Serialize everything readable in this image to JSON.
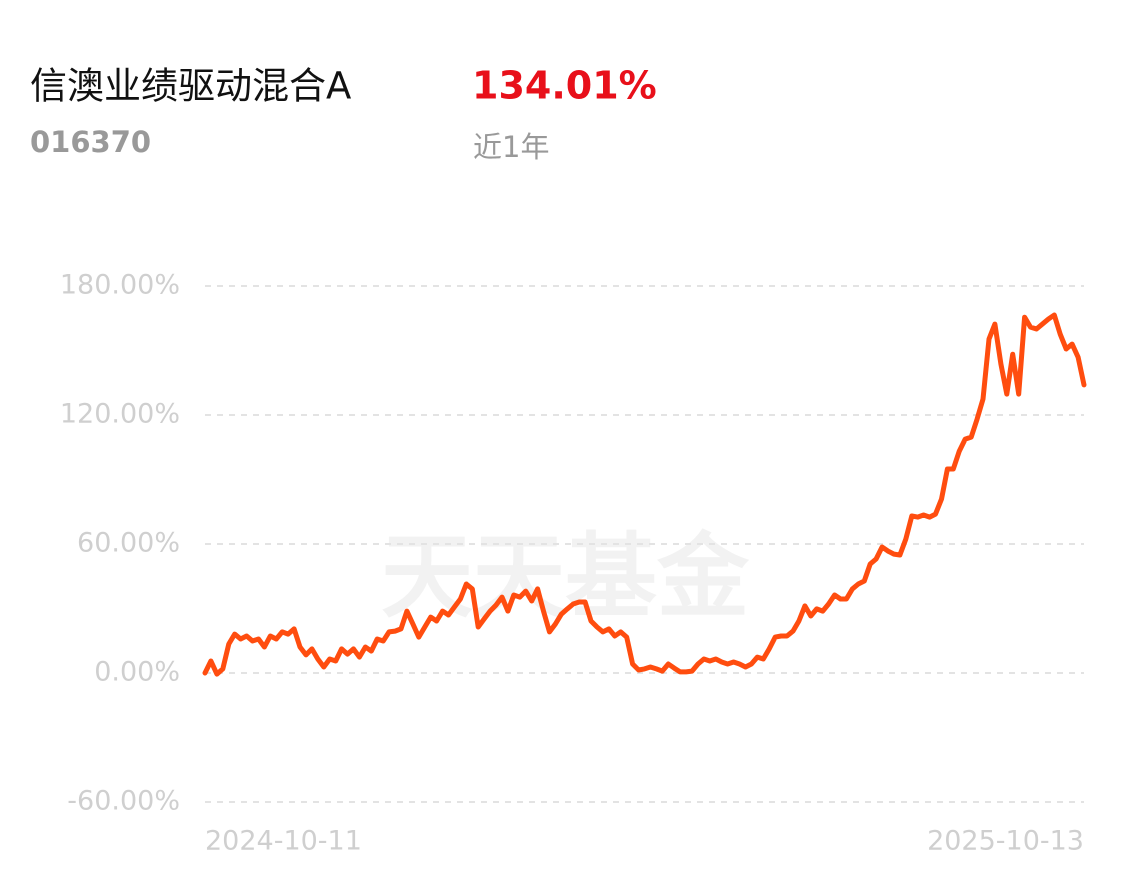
{
  "chart_data": {
    "type": "line",
    "title": "信澳业绩驱动混合A",
    "return_label": "134.01%",
    "code": "016370",
    "period": "近1年",
    "watermark": "天天基金",
    "color": "#ff4d0f",
    "grid": true,
    "ylim": [
      -60,
      180
    ],
    "yticks": [
      {
        "value": -60,
        "label": "-60.00%"
      },
      {
        "value": 0,
        "label": "0.00%"
      },
      {
        "value": 60,
        "label": "60.00%"
      },
      {
        "value": 120,
        "label": "120.00%"
      },
      {
        "value": 180,
        "label": "180.00%"
      }
    ],
    "categories": [
      "2024-10-11",
      null,
      null,
      null,
      null,
      null,
      null,
      null,
      null,
      null,
      null,
      null,
      null,
      null,
      null,
      null,
      null,
      null,
      null,
      null,
      null,
      null,
      null,
      null,
      null,
      null,
      null,
      null,
      null,
      null,
      null,
      null,
      null,
      null,
      null,
      null,
      null,
      null,
      null,
      null,
      null,
      null,
      null,
      null,
      null,
      null,
      null,
      null,
      null,
      null,
      null,
      null,
      null,
      null,
      null,
      null,
      null,
      null,
      null,
      null,
      null,
      null,
      null,
      null,
      null,
      null,
      null,
      null,
      null,
      null,
      null,
      null,
      null,
      null,
      null,
      null,
      null,
      null,
      null,
      null,
      null,
      null,
      null,
      null,
      null,
      null,
      null,
      null,
      null,
      null,
      null,
      null,
      null,
      null,
      null,
      null,
      null,
      null,
      null,
      null,
      null,
      null,
      null,
      null,
      null,
      null,
      null,
      null,
      null,
      null,
      null,
      null,
      null,
      null,
      null,
      null,
      null,
      null,
      null,
      null,
      null,
      null,
      null,
      null,
      null,
      null,
      null,
      null,
      null,
      null,
      null,
      null,
      null,
      null,
      null,
      null,
      null,
      null,
      null,
      null,
      null,
      null,
      null,
      null,
      null,
      null,
      null,
      null,
      "2025-10-13"
    ],
    "values": [
      0,
      5.6,
      -0.5,
      1.9,
      13.5,
      18.1,
      15.8,
      17.2,
      14.9,
      15.8,
      12.1,
      17.2,
      15.8,
      19.1,
      18.1,
      20.5,
      12.1,
      8.4,
      11.2,
      6.5,
      2.8,
      6.5,
      5.6,
      11.2,
      8.8,
      11.2,
      7.4,
      12.1,
      10.2,
      15.8,
      14.9,
      19.1,
      19.5,
      20.5,
      28.8,
      22.8,
      16.7,
      21.4,
      26.0,
      24.2,
      28.8,
      27.0,
      30.7,
      34.4,
      41.4,
      39.1,
      21.4,
      25.1,
      28.8,
      31.6,
      35.3,
      28.8,
      36.3,
      35.3,
      38.1,
      33.5,
      39.1,
      28.8,
      19.1,
      22.8,
      27.4,
      29.8,
      32.1,
      33.0,
      33.0,
      24.2,
      21.4,
      19.1,
      20.5,
      17.2,
      19.1,
      16.7,
      4.2,
      1.4,
      1.9,
      2.8,
      1.9,
      0.9,
      4.2,
      2.3,
      0.5,
      0.5,
      0.9,
      4.2,
      6.5,
      5.6,
      6.5,
      5.1,
      4.2,
      5.1,
      4.2,
      2.8,
      4.2,
      7.4,
      6.5,
      11.2,
      16.7,
      17.2,
      17.2,
      19.5,
      24.2,
      31.2,
      26.5,
      29.8,
      28.8,
      32.1,
      36.3,
      34.4,
      34.4,
      39.1,
      41.4,
      42.8,
      50.7,
      53.0,
      58.6,
      56.7,
      55.3,
      54.9,
      62.3,
      73.0,
      72.5,
      73.5,
      72.5,
      73.9,
      80.9,
      94.9,
      94.9,
      103.2,
      108.8,
      109.7,
      118.1,
      127.4,
      155.3,
      162.3,
      143.7,
      129.7,
      148.3,
      129.7,
      165.5,
      160.9,
      160.0,
      162.3,
      164.6,
      166.5,
      157.6,
      150.7,
      153.0,
      146.9,
      134.01
    ]
  }
}
